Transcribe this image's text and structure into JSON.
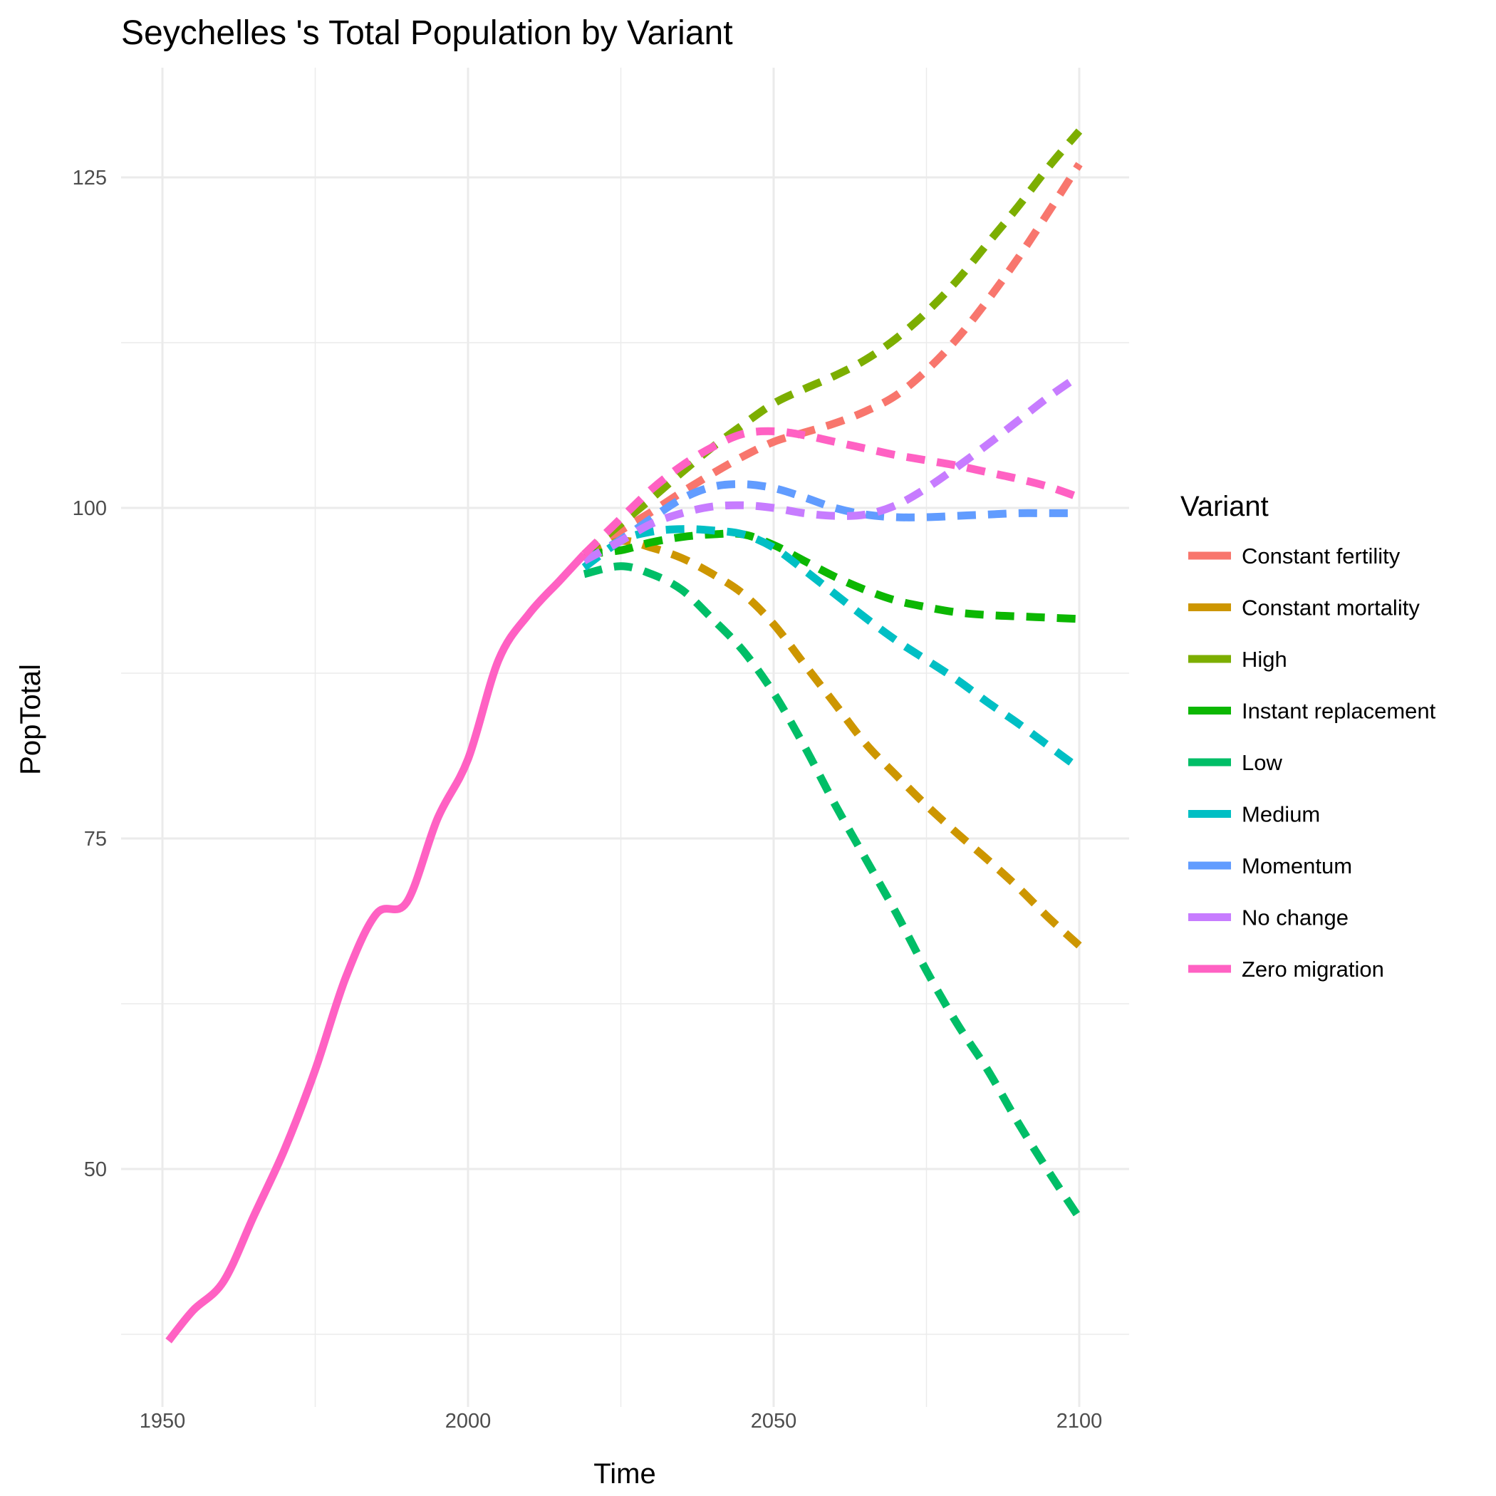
{
  "chart_data": {
    "type": "line",
    "title": "Seychelles 's Total Population by Variant",
    "xlabel": "Time",
    "ylabel": "PopTotal",
    "xlim": [
      1950,
      2100
    ],
    "ylim": [
      36,
      128
    ],
    "x_ticks": [
      1950,
      2000,
      2050,
      2100
    ],
    "y_ticks": [
      50,
      75,
      100,
      125
    ],
    "grid": true,
    "legend_title": "Variant",
    "legend_position": "right",
    "historical": {
      "x": [
        1951,
        1955,
        1960,
        1965,
        1970,
        1975,
        1980,
        1985,
        1990,
        1995,
        2000,
        2005,
        2010,
        2015,
        2019
      ],
      "y": [
        37.0,
        39.3,
        41.5,
        46.5,
        51.5,
        57.5,
        64.5,
        69.3,
        70.2,
        76.5,
        81.0,
        88.5,
        92.0,
        94.5,
        96.5
      ]
    },
    "series": [
      {
        "name": "Constant fertility",
        "color": "#F8766D",
        "x": [
          2019,
          2025,
          2030,
          2035,
          2040,
          2045,
          2050,
          2055,
          2060,
          2065,
          2070,
          2075,
          2080,
          2085,
          2090,
          2095,
          2100
        ],
        "y": [
          96.5,
          98.3,
          99.7,
          101.2,
          102.6,
          103.9,
          105.0,
          105.7,
          106.4,
          107.3,
          108.5,
          110.4,
          112.8,
          115.7,
          118.9,
          122.4,
          126.0
        ]
      },
      {
        "name": "Constant mortality",
        "color": "#CD9600",
        "x": [
          2019,
          2025,
          2030,
          2035,
          2040,
          2045,
          2050,
          2055,
          2060,
          2065,
          2070,
          2075,
          2080,
          2085,
          2090,
          2095,
          2100
        ],
        "y": [
          96.5,
          97.5,
          97.0,
          96.2,
          95.0,
          93.5,
          91.2,
          88.2,
          85.2,
          82.2,
          79.8,
          77.5,
          75.4,
          73.4,
          71.3,
          69.0,
          66.9
        ]
      },
      {
        "name": "High",
        "color": "#7CAE00",
        "x": [
          2019,
          2025,
          2030,
          2035,
          2040,
          2045,
          2050,
          2055,
          2060,
          2065,
          2070,
          2075,
          2080,
          2085,
          2090,
          2095,
          2100
        ],
        "y": [
          96.5,
          98.8,
          100.7,
          102.7,
          104.6,
          106.3,
          107.9,
          109.0,
          110.0,
          111.2,
          112.8,
          114.8,
          117.2,
          120.0,
          122.8,
          125.8,
          128.5
        ]
      },
      {
        "name": "Instant replacement",
        "color": "#0CB702",
        "x": [
          2019,
          2025,
          2030,
          2035,
          2040,
          2045,
          2050,
          2055,
          2060,
          2065,
          2070,
          2075,
          2080,
          2085,
          2090,
          2095,
          2100
        ],
        "y": [
          96.5,
          96.8,
          97.4,
          97.8,
          98.0,
          98.0,
          97.2,
          96.0,
          94.8,
          93.8,
          93.0,
          92.5,
          92.1,
          91.9,
          91.8,
          91.7,
          91.6
        ]
      },
      {
        "name": "Low",
        "color": "#00BE67",
        "x": [
          2019,
          2025,
          2030,
          2035,
          2040,
          2045,
          2050,
          2055,
          2060,
          2065,
          2070,
          2075,
          2080,
          2085,
          2090,
          2095,
          2100
        ],
        "y": [
          95.0,
          95.6,
          95.0,
          93.8,
          91.6,
          89.2,
          86.0,
          82.0,
          77.6,
          73.5,
          69.4,
          65.0,
          61.0,
          57.5,
          53.5,
          49.8,
          46.3
        ]
      },
      {
        "name": "Medium",
        "color": "#00BFC4",
        "x": [
          2019,
          2025,
          2030,
          2035,
          2040,
          2045,
          2050,
          2055,
          2060,
          2065,
          2070,
          2075,
          2080,
          2085,
          2090,
          2095,
          2100
        ],
        "y": [
          95.5,
          97.5,
          98.2,
          98.4,
          98.3,
          98.0,
          97.0,
          95.3,
          93.5,
          91.7,
          90.0,
          88.5,
          87.0,
          85.3,
          83.7,
          82.0,
          80.3
        ]
      },
      {
        "name": "Momentum",
        "color": "#619CFF",
        "x": [
          2019,
          2025,
          2030,
          2035,
          2040,
          2045,
          2050,
          2055,
          2060,
          2065,
          2070,
          2075,
          2080,
          2085,
          2090,
          2095,
          2100
        ],
        "y": [
          96.0,
          97.6,
          99.2,
          100.7,
          101.6,
          101.8,
          101.5,
          100.8,
          100.0,
          99.5,
          99.3,
          99.3,
          99.4,
          99.5,
          99.6,
          99.6,
          99.6
        ]
      },
      {
        "name": "No change",
        "color": "#C77CFF",
        "x": [
          2019,
          2025,
          2030,
          2035,
          2040,
          2045,
          2050,
          2055,
          2060,
          2065,
          2070,
          2075,
          2080,
          2085,
          2090,
          2095,
          2100
        ],
        "y": [
          96.0,
          97.5,
          98.8,
          99.6,
          100.1,
          100.2,
          100.0,
          99.6,
          99.4,
          99.5,
          100.2,
          101.5,
          103.1,
          104.8,
          106.6,
          108.4,
          110.0
        ]
      },
      {
        "name": "Zero migration",
        "color": "#FF61C3",
        "x": [
          2019,
          2025,
          2030,
          2035,
          2040,
          2045,
          2050,
          2055,
          2060,
          2065,
          2070,
          2075,
          2080,
          2085,
          2090,
          2095,
          2100
        ],
        "y": [
          96.5,
          99.2,
          101.4,
          103.2,
          104.6,
          105.6,
          105.8,
          105.5,
          105.0,
          104.5,
          104.0,
          103.6,
          103.2,
          102.7,
          102.2,
          101.6,
          100.8
        ]
      }
    ]
  }
}
